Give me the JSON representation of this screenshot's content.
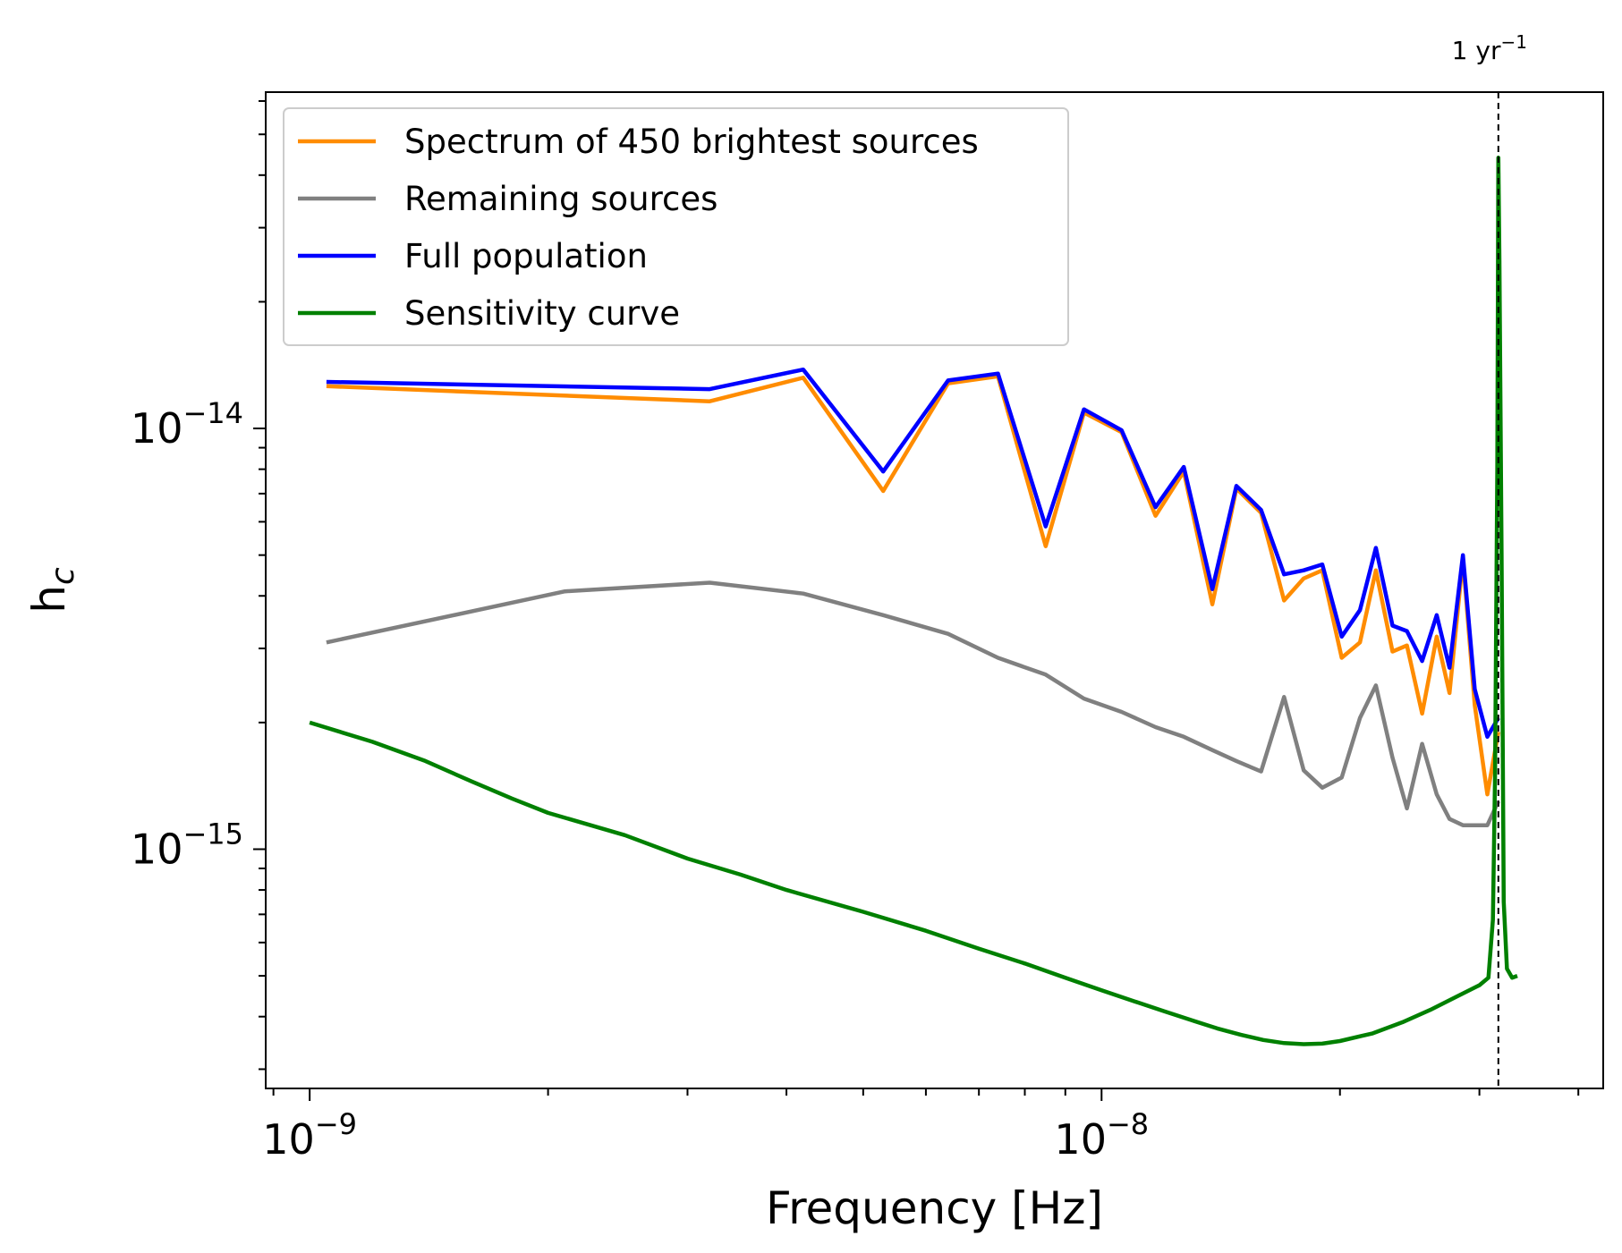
{
  "chart_data": {
    "type": "line",
    "title": "",
    "xlabel": "Frequency [Hz]",
    "ylabel": "h",
    "ylabel_sub": "c",
    "xscale": "log",
    "yscale": "log",
    "xlim": [
      8.8e-10,
      4.3e-08
    ],
    "ylim": [
      2.7e-16,
      6.3e-14
    ],
    "grid": false,
    "legend_position": "top-left",
    "x_ticks": [
      {
        "value": 1e-09,
        "base": "10",
        "exp": "−9"
      },
      {
        "value": 1e-08,
        "base": "10",
        "exp": "−8"
      }
    ],
    "y_ticks": [
      {
        "value": 1e-14,
        "base": "10",
        "exp": "−14"
      },
      {
        "value": 1e-15,
        "base": "10",
        "exp": "−15"
      }
    ],
    "annotations": [
      {
        "text": "1 yr",
        "sup": "−1",
        "x": 3.17e-08,
        "style": "dashed-vertical-line"
      }
    ],
    "series": [
      {
        "name": "Spectrum of 450 brightest sources",
        "color": "#ff8c00",
        "x": [
          1.05e-09,
          3.2e-09,
          4.2e-09,
          5.3e-09,
          6.4e-09,
          7.4e-09,
          8.5e-09,
          9.5e-09,
          1.06e-08,
          1.17e-08,
          1.27e-08,
          1.38e-08,
          1.48e-08,
          1.59e-08,
          1.7e-08,
          1.8e-08,
          1.9e-08,
          2.01e-08,
          2.12e-08,
          2.22e-08,
          2.33e-08,
          2.43e-08,
          2.54e-08,
          2.65e-08,
          2.75e-08,
          2.86e-08,
          2.96e-08,
          3.07e-08,
          3.17e-08
        ],
        "y": [
          1.26e-14,
          1.16e-14,
          1.32e-14,
          7.1e-15,
          1.28e-14,
          1.33e-14,
          5.25e-15,
          1.09e-14,
          9.8e-15,
          6.2e-15,
          7.9e-15,
          3.82e-15,
          7.2e-15,
          6.3e-15,
          3.9e-15,
          4.4e-15,
          4.6e-15,
          2.85e-15,
          3.1e-15,
          4.6e-15,
          2.95e-15,
          3.05e-15,
          2.1e-15,
          3.2e-15,
          2.35e-15,
          4.9e-15,
          2.2e-15,
          1.35e-15,
          1.9e-15
        ]
      },
      {
        "name": "Remaining sources",
        "color": "#808080",
        "x": [
          1.05e-09,
          2.1e-09,
          3.2e-09,
          4.2e-09,
          5.3e-09,
          6.4e-09,
          7.4e-09,
          8.5e-09,
          9.5e-09,
          1.06e-08,
          1.17e-08,
          1.27e-08,
          1.38e-08,
          1.48e-08,
          1.59e-08,
          1.7e-08,
          1.8e-08,
          1.9e-08,
          2.01e-08,
          2.12e-08,
          2.22e-08,
          2.33e-08,
          2.43e-08,
          2.54e-08,
          2.65e-08,
          2.75e-08,
          2.86e-08,
          2.96e-08,
          3.07e-08,
          3.17e-08
        ],
        "y": [
          3.1e-15,
          4.1e-15,
          4.3e-15,
          4.05e-15,
          3.6e-15,
          3.25e-15,
          2.85e-15,
          2.6e-15,
          2.28e-15,
          2.12e-15,
          1.95e-15,
          1.85e-15,
          1.72e-15,
          1.62e-15,
          1.53e-15,
          2.3e-15,
          1.54e-15,
          1.4e-15,
          1.48e-15,
          2.05e-15,
          2.45e-15,
          1.65e-15,
          1.25e-15,
          1.78e-15,
          1.35e-15,
          1.18e-15,
          1.14e-15,
          1.14e-15,
          1.14e-15,
          1.3e-15
        ]
      },
      {
        "name": "Full population",
        "color": "#0000ff",
        "x": [
          1.05e-09,
          3.2e-09,
          4.2e-09,
          5.3e-09,
          6.4e-09,
          7.4e-09,
          8.5e-09,
          9.5e-09,
          1.06e-08,
          1.17e-08,
          1.27e-08,
          1.38e-08,
          1.48e-08,
          1.59e-08,
          1.7e-08,
          1.8e-08,
          1.9e-08,
          2.01e-08,
          2.12e-08,
          2.22e-08,
          2.33e-08,
          2.43e-08,
          2.54e-08,
          2.65e-08,
          2.75e-08,
          2.86e-08,
          2.96e-08,
          3.07e-08,
          3.17e-08
        ],
        "y": [
          1.29e-14,
          1.24e-14,
          1.38e-14,
          7.9e-15,
          1.3e-14,
          1.35e-14,
          5.85e-15,
          1.11e-14,
          9.9e-15,
          6.5e-15,
          8.1e-15,
          4.15e-15,
          7.3e-15,
          6.4e-15,
          4.5e-15,
          4.6e-15,
          4.75e-15,
          3.2e-15,
          3.7e-15,
          5.2e-15,
          3.4e-15,
          3.3e-15,
          2.8e-15,
          3.6e-15,
          2.7e-15,
          5e-15,
          2.4e-15,
          1.85e-15,
          2.05e-15
        ]
      },
      {
        "name": "Sensitivity curve",
        "color": "#008000",
        "x": [
          1e-09,
          1.2e-09,
          1.4e-09,
          1.6e-09,
          1.8e-09,
          2e-09,
          2.5e-09,
          3e-09,
          3.5e-09,
          4e-09,
          5e-09,
          6e-09,
          7e-09,
          8e-09,
          9e-09,
          1e-08,
          1.1e-08,
          1.2e-08,
          1.3e-08,
          1.4e-08,
          1.5e-08,
          1.6e-08,
          1.7e-08,
          1.8e-08,
          1.9e-08,
          2e-08,
          2.2e-08,
          2.4e-08,
          2.6e-08,
          2.8e-08,
          3e-08,
          3.08e-08,
          3.12e-08,
          3.14e-08,
          3.16e-08,
          3.17e-08,
          3.18e-08,
          3.2e-08,
          3.22e-08,
          3.25e-08,
          3.3e-08,
          3.35e-08
        ],
        "y": [
          2e-15,
          1.8e-15,
          1.62e-15,
          1.45e-15,
          1.32e-15,
          1.22e-15,
          1.08e-15,
          9.5e-16,
          8.7e-16,
          8e-16,
          7.1e-16,
          6.4e-16,
          5.8e-16,
          5.35e-16,
          4.95e-16,
          4.62e-16,
          4.35e-16,
          4.12e-16,
          3.92e-16,
          3.75e-16,
          3.62e-16,
          3.52e-16,
          3.46e-16,
          3.44e-16,
          3.45e-16,
          3.5e-16,
          3.65e-16,
          3.88e-16,
          4.15e-16,
          4.45e-16,
          4.75e-16,
          4.95e-16,
          6.8e-16,
          1.5e-15,
          8e-15,
          4.4e-14,
          2.5e-14,
          5e-15,
          7.5e-16,
          5.2e-16,
          4.95e-16,
          5e-16
        ]
      }
    ]
  }
}
